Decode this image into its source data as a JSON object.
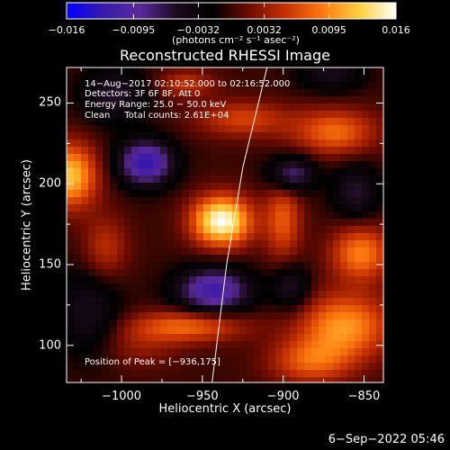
{
  "colorbar": {
    "tick_labels": [
      "−0.016",
      "−0.0095",
      "−0.0032",
      "0.0032",
      "0.0095",
      "0.016"
    ],
    "tick_values": [
      -0.016,
      -0.0095,
      -0.0032,
      0.0032,
      0.0095,
      0.016
    ],
    "range": [
      -0.016,
      0.016
    ],
    "unit_label": "(photons cm⁻² s⁻¹ asec⁻²)",
    "colors": [
      "#0000ff",
      "#3a1aa8",
      "#5a2a9a",
      "#1a0a1a",
      "#000000",
      "#6e0c00",
      "#c83200",
      "#ff7a10",
      "#ffd040",
      "#ffffff"
    ]
  },
  "chart_data": {
    "type": "heatmap",
    "title": "Reconstructed RHESSI Image",
    "xlabel": "Heliocentric X (arcsec)",
    "ylabel": "Heliocentric Y (arcsec)",
    "xlim": [
      -1034,
      -838
    ],
    "ylim": [
      77,
      272
    ],
    "x_ticks": [
      -1000,
      -950,
      -900,
      -850
    ],
    "x_tick_labels": [
      "−1000",
      "−950",
      "−900",
      "−850"
    ],
    "y_ticks": [
      100,
      150,
      200,
      250
    ],
    "y_tick_labels": [
      "100",
      "150",
      "200",
      "250"
    ],
    "annotations": [
      "14−Aug−2017 02:10:52.000 to 02:16:52.000",
      "Detectors: 3F 6F 8F, Att 0",
      "Energy Range: 25.0 − 50.0 keV",
      "Clean     Total counts: 2.61E+04"
    ],
    "peak_label": "Position of Peak = [−936,175]",
    "peak": [
      -936,
      175
    ],
    "limb_curve": [
      [
        -944,
        77
      ],
      [
        -935,
        150
      ],
      [
        -925,
        210
      ],
      [
        -910,
        272
      ]
    ],
    "sources": [
      {
        "x": -938,
        "y": 177,
        "amp": 0.016,
        "sx": 13,
        "sy": 11
      },
      {
        "x": -1032,
        "y": 205,
        "amp": 0.012,
        "sx": 12,
        "sy": 14
      },
      {
        "x": -862,
        "y": 112,
        "amp": 0.01,
        "sx": 20,
        "sy": 14
      },
      {
        "x": -852,
        "y": 157,
        "amp": 0.009,
        "sx": 13,
        "sy": 12
      },
      {
        "x": -868,
        "y": 232,
        "amp": 0.008,
        "sx": 18,
        "sy": 10
      },
      {
        "x": -925,
        "y": 240,
        "amp": 0.006,
        "sx": 20,
        "sy": 8
      },
      {
        "x": -960,
        "y": 262,
        "amp": 0.005,
        "sx": 12,
        "sy": 6
      },
      {
        "x": -883,
        "y": 90,
        "amp": 0.007,
        "sx": 18,
        "sy": 10
      },
      {
        "x": -990,
        "y": 100,
        "amp": 0.003,
        "sx": 18,
        "sy": 10
      },
      {
        "x": -1010,
        "y": 160,
        "amp": 0.005,
        "sx": 10,
        "sy": 14
      },
      {
        "x": -958,
        "y": 112,
        "amp": 0.008,
        "sx": 24,
        "sy": 7
      },
      {
        "x": -900,
        "y": 178,
        "amp": 0.007,
        "sx": 8,
        "sy": 18
      },
      {
        "x": -943,
        "y": 134,
        "amp": -0.012,
        "sx": 16,
        "sy": 10
      },
      {
        "x": -985,
        "y": 213,
        "amp": -0.013,
        "sx": 12,
        "sy": 10
      },
      {
        "x": -895,
        "y": 206,
        "amp": -0.009,
        "sx": 10,
        "sy": 8
      },
      {
        "x": -895,
        "y": 136,
        "amp": -0.006,
        "sx": 8,
        "sy": 10
      },
      {
        "x": -1020,
        "y": 120,
        "amp": -0.005,
        "sx": 14,
        "sy": 20
      },
      {
        "x": -855,
        "y": 195,
        "amp": -0.006,
        "sx": 10,
        "sy": 12
      },
      {
        "x": -1005,
        "y": 255,
        "amp": -0.006,
        "sx": 14,
        "sy": 12
      },
      {
        "x": -870,
        "y": 268,
        "amp": -0.005,
        "sx": 14,
        "sy": 8
      }
    ]
  },
  "footer": {
    "date": "6−Sep−2022 05:46"
  }
}
